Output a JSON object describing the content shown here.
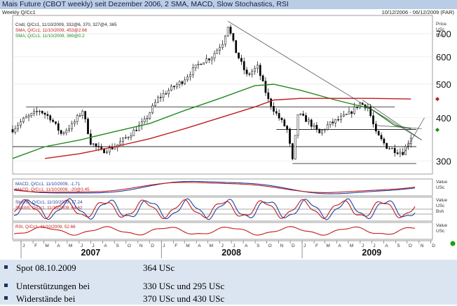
{
  "header": {
    "title": "Mais Future (CBOT weekly) seit Dezember 2006, 2 SMA, MACD, Slow Stochastics, RSI",
    "left_caption": "Weekly Q/Cc1",
    "right_caption": "10/12/2006 - 06/12/2009 (FAR)"
  },
  "colors": {
    "candle": "#000000",
    "sma_short": "#1f8a1f",
    "sma_long": "#c21b1b",
    "macd_line": "#1d3fa3",
    "macd_signal": "#c21b1b",
    "stoch_k": "#1d3fa3",
    "stoch_d": "#c21b1b",
    "rsi": "#c21b1b",
    "title_bar": "#b9cde5",
    "footer_bg": "#dbe5f1",
    "bullet": "#17375e"
  },
  "chart_data": {
    "type": "candlestick",
    "scale": "log",
    "price_axis": {
      "unit_labels": [
        "Price",
        "USc",
        "Bsh"
      ],
      "ticks": [
        300,
        400,
        500,
        600,
        700
      ],
      "ylim": [
        275,
        790
      ]
    },
    "x_axis": {
      "range": [
        "2006-12-10",
        "2009-12-06"
      ],
      "months": [
        "J",
        "F",
        "M",
        "A",
        "M",
        "J",
        "J",
        "A",
        "S",
        "O",
        "N",
        "D",
        "J",
        "F",
        "M",
        "A",
        "M",
        "J",
        "J",
        "A",
        "S",
        "O",
        "N",
        "D",
        "J",
        "F",
        "M",
        "A",
        "M",
        "J",
        "J",
        "A",
        "S",
        "O",
        "N",
        "D"
      ],
      "years": [
        "2007",
        "2008",
        "2009"
      ]
    },
    "price_legend": [
      "Cndl, Q/Cc1, 11/10/2009, 332@6, 370, 327@4, 365",
      "SMA, Q/Cc1, 11/10/2009, 453@2.66",
      "SMA, Q/Cc1, 11/10/2009, 369@0.2"
    ],
    "close_anchors": [
      [
        "2006-12-10",
        370
      ],
      [
        "2007-01-07",
        395
      ],
      [
        "2007-02-18",
        420
      ],
      [
        "2007-03-18",
        400
      ],
      [
        "2007-04-15",
        360
      ],
      [
        "2007-05-13",
        380
      ],
      [
        "2007-06-10",
        420
      ],
      [
        "2007-07-01",
        340
      ],
      [
        "2007-07-29",
        320
      ],
      [
        "2007-09-02",
        330
      ],
      [
        "2007-10-14",
        360
      ],
      [
        "2007-11-18",
        390
      ],
      [
        "2007-12-23",
        455
      ],
      [
        "2008-01-20",
        480
      ],
      [
        "2008-02-24",
        510
      ],
      [
        "2008-03-16",
        540
      ],
      [
        "2008-04-13",
        580
      ],
      [
        "2008-05-11",
        600
      ],
      [
        "2008-06-08",
        660
      ],
      [
        "2008-06-22",
        740
      ],
      [
        "2008-07-13",
        620
      ],
      [
        "2008-08-10",
        530
      ],
      [
        "2008-09-07",
        560
      ],
      [
        "2008-10-05",
        450
      ],
      [
        "2008-10-26",
        410
      ],
      [
        "2008-11-23",
        370
      ],
      [
        "2008-12-07",
        300
      ],
      [
        "2008-12-21",
        410
      ],
      [
        "2009-01-18",
        390
      ],
      [
        "2009-02-15",
        360
      ],
      [
        "2009-03-08",
        380
      ],
      [
        "2009-04-05",
        395
      ],
      [
        "2009-05-03",
        410
      ],
      [
        "2009-05-31",
        440
      ],
      [
        "2009-06-21",
        430
      ],
      [
        "2009-07-12",
        360
      ],
      [
        "2009-08-09",
        330
      ],
      [
        "2009-09-06",
        320
      ],
      [
        "2009-09-20",
        318
      ],
      [
        "2009-10-11",
        352
      ]
    ],
    "sma_short": [
      [
        "2006-12-10",
        305
      ],
      [
        "2007-03-04",
        330
      ],
      [
        "2007-06-03",
        345
      ],
      [
        "2007-09-02",
        365
      ],
      [
        "2007-12-02",
        385
      ],
      [
        "2008-03-02",
        420
      ],
      [
        "2008-06-01",
        455
      ],
      [
        "2008-08-31",
        495
      ],
      [
        "2008-10-19",
        500
      ],
      [
        "2008-12-28",
        480
      ],
      [
        "2009-03-29",
        450
      ],
      [
        "2009-06-28",
        425
      ],
      [
        "2009-08-30",
        380
      ],
      [
        "2009-10-11",
        372
      ]
    ],
    "sma_long": [
      [
        "2007-03-04",
        305
      ],
      [
        "2007-06-03",
        315
      ],
      [
        "2007-09-02",
        330
      ],
      [
        "2007-12-02",
        348
      ],
      [
        "2008-03-02",
        372
      ],
      [
        "2008-06-01",
        400
      ],
      [
        "2008-08-31",
        430
      ],
      [
        "2008-10-19",
        450
      ],
      [
        "2008-12-28",
        455
      ],
      [
        "2009-03-29",
        455
      ],
      [
        "2009-06-28",
        455
      ],
      [
        "2009-10-11",
        453
      ]
    ],
    "horizontal_levels": [
      {
        "y": 430,
        "from": "2007-01-14",
        "to": "2009-08-30"
      },
      {
        "y": 370,
        "from": "2008-10-26",
        "to": "2009-10-25"
      },
      {
        "y": 330,
        "from": "2006-12-10",
        "to": "2009-10-25"
      },
      {
        "y": 295,
        "from": "2008-12-07",
        "to": "2009-10-25"
      }
    ],
    "trendlines": [
      {
        "from": [
          "2008-06-22",
          760
        ],
        "to": [
          "2009-11-08",
          345
        ]
      },
      {
        "from": [
          "2009-06-07",
          450
        ],
        "to": [
          "2009-11-08",
          345
        ]
      },
      {
        "from": [
          "2009-09-20",
          312
        ],
        "to": [
          "2009-11-15",
          400
        ]
      },
      {
        "from": [
          "2009-07-12",
          380
        ],
        "to": [
          "2009-11-08",
          372
        ]
      }
    ],
    "markers": [
      {
        "y": 453,
        "color": "#c21b1b"
      },
      {
        "y": 369,
        "color": "#1f8a1f"
      }
    ],
    "macd_panel": {
      "legend": [
        "MACD, Q/Cc1, 11/10/2009, -1.71",
        "MACD, Q/Cc1, 11/10/2009, -20@3.45"
      ],
      "axis_labels": [
        "Value",
        "USc"
      ]
    },
    "stoch_panel": {
      "legend": [
        "StochS, Q/Cc1, 11/10/2009, 77.24",
        "StochS, Q/Cc1, 11/10/2009, 64.62"
      ],
      "axis_labels": [
        "Value",
        "USc",
        "Bsh"
      ]
    },
    "rsi_panel": {
      "legend": [
        "RSI, Q/Cc1, 11/10/2009, 52.66"
      ],
      "axis_labels": [
        "Value",
        "USc"
      ]
    }
  },
  "footer": {
    "rows": [
      {
        "label": "Spot 08.10.2009",
        "value": "364 USc"
      },
      {
        "label": "Unterstützungen bei",
        "value": "330 USc und 295 USc"
      },
      {
        "label": "Widerstände bei",
        "value": "370 USc und 430 USc"
      }
    ]
  }
}
